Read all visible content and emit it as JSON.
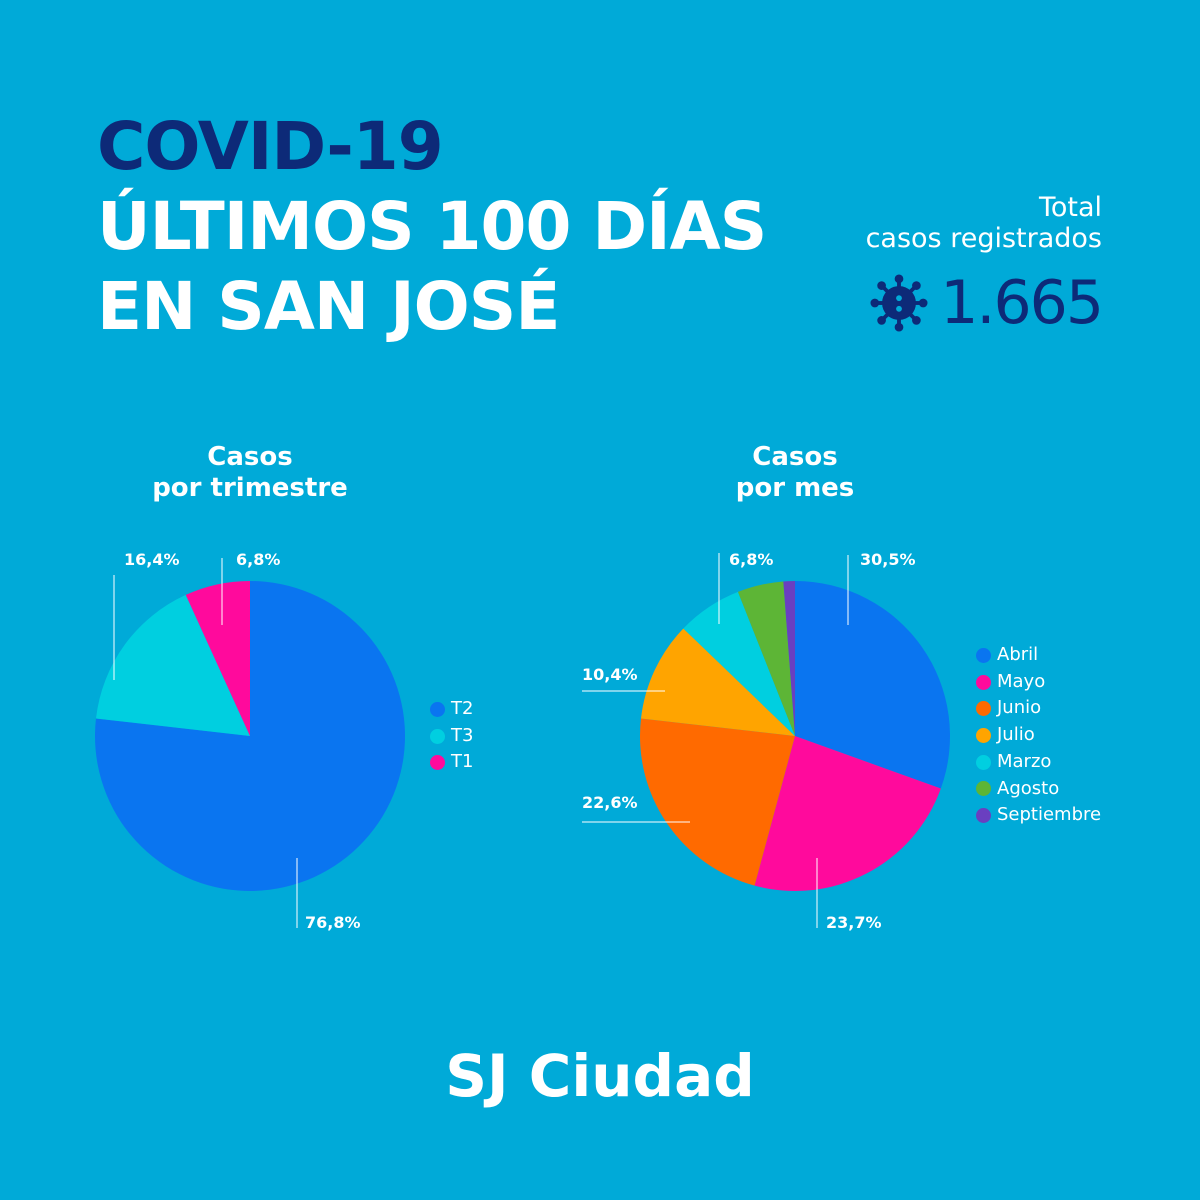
{
  "header": {
    "line1": "COVID-19",
    "line2": "ÚLTIMOS 100 DÍAS",
    "line3": "EN SAN JOSÉ"
  },
  "total": {
    "label_line1": "Total",
    "label_line2": "casos registrados",
    "value": "1.665",
    "icon": "virus-icon"
  },
  "brand": "SJ Ciudad",
  "colors": {
    "background": "#00aad8",
    "navy": "#0d2a78"
  },
  "chart_data": [
    {
      "type": "pie",
      "title_line1": "Casos",
      "title_line2": "por trimestre",
      "slices": [
        {
          "name": "T2",
          "value": 76.8,
          "label": "76,8%",
          "color": "#0a75f0"
        },
        {
          "name": "T3",
          "value": 16.4,
          "label": "16,4%",
          "color": "#00cfe0"
        },
        {
          "name": "T1",
          "value": 6.8,
          "label": "6,8%",
          "color": "#ff0a9c"
        }
      ]
    },
    {
      "type": "pie",
      "title_line1": "Casos",
      "title_line2": "por mes",
      "slices": [
        {
          "name": "Abril",
          "value": 30.5,
          "label": "30,5%",
          "color": "#0a75f0"
        },
        {
          "name": "Mayo",
          "value": 23.7,
          "label": "23,7%",
          "color": "#ff0a9c"
        },
        {
          "name": "Junio",
          "value": 22.6,
          "label": "22,6%",
          "color": "#ff6a00"
        },
        {
          "name": "Julio",
          "value": 10.4,
          "label": "10,4%",
          "color": "#ffa400"
        },
        {
          "name": "Marzo",
          "value": 6.8,
          "label": "6,8%",
          "color": "#00cfe0"
        },
        {
          "name": "Agosto",
          "value": 4.8,
          "label": null,
          "color": "#5db536"
        },
        {
          "name": "Septiembre",
          "value": 1.2,
          "label": null,
          "color": "#6a3fc0"
        }
      ]
    }
  ]
}
